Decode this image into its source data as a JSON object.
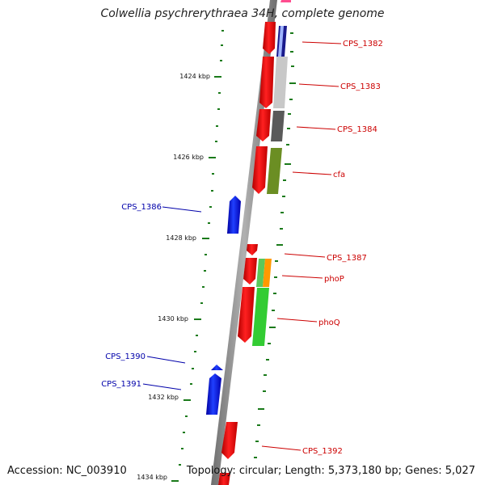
{
  "title": "Colwellia psychrerythraea 34H, complete genome",
  "footer": {
    "accession": "Accession: NC_003910",
    "topology": "Topology: circular; Length: 5,373,180 bp; Genes: 5,027"
  },
  "colors": {
    "forward_gene": "#ff0000",
    "reverse_gene": "#0000ff",
    "backbone": "#808080",
    "ticks": "#1a7a1a",
    "label_forward": "#cc0000",
    "label_reverse": "#0000aa"
  },
  "scale_labels": [
    "1424 kbp",
    "1426 kbp",
    "1428 kbp",
    "1430 kbp",
    "1432 kbp",
    "1434 kbp"
  ],
  "gene_labels": {
    "forward": [
      "CPS_1382",
      "CPS_1383",
      "CPS_1384",
      "cfa",
      "CPS_1387",
      "phoP",
      "phoQ",
      "CPS_1392"
    ],
    "reverse": [
      "CPS_1386",
      "CPS_1390",
      "CPS_1391"
    ]
  }
}
